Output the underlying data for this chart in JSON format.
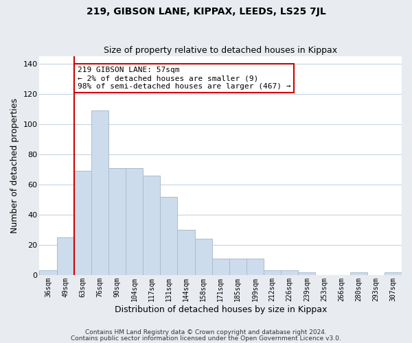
{
  "title1": "219, GIBSON LANE, KIPPAX, LEEDS, LS25 7JL",
  "title2": "Size of property relative to detached houses in Kippax",
  "xlabel": "Distribution of detached houses by size in Kippax",
  "ylabel": "Number of detached properties",
  "bar_color": "#ccdcec",
  "bar_edge_color": "#aabccc",
  "categories": [
    "36sqm",
    "49sqm",
    "63sqm",
    "76sqm",
    "90sqm",
    "104sqm",
    "117sqm",
    "131sqm",
    "144sqm",
    "158sqm",
    "171sqm",
    "185sqm",
    "199sqm",
    "212sqm",
    "226sqm",
    "239sqm",
    "253sqm",
    "266sqm",
    "280sqm",
    "293sqm",
    "307sqm"
  ],
  "values": [
    3,
    25,
    69,
    109,
    71,
    71,
    66,
    52,
    30,
    24,
    11,
    11,
    11,
    3,
    3,
    2,
    0,
    0,
    2,
    0,
    2
  ],
  "ylim": [
    0,
    145
  ],
  "yticks": [
    0,
    20,
    40,
    60,
    80,
    100,
    120,
    140
  ],
  "property_line_color": "#cc0000",
  "annotation_text": "219 GIBSON LANE: 57sqm\n← 2% of detached houses are smaller (9)\n98% of semi-detached houses are larger (467) →",
  "annotation_box_color": "#ffffff",
  "annotation_box_edge_color": "#cc0000",
  "footer1": "Contains HM Land Registry data © Crown copyright and database right 2024.",
  "footer2": "Contains public sector information licensed under the Open Government Licence v3.0.",
  "background_color": "#e8ecf0",
  "plot_background_color": "#ffffff",
  "grid_color": "#c8d4e0"
}
